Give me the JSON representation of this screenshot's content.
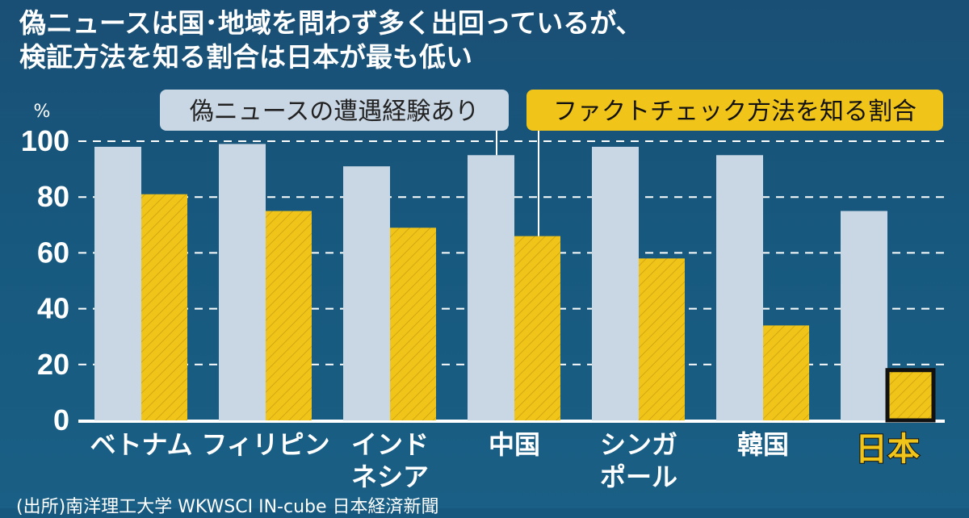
{
  "title_lines": [
    "偽ニュースは国･地域を問わず多く出回っているが、",
    "検証方法を知る割合は日本が最も低い"
  ],
  "source": "(出所)南洋理工大学 WKWSCI IN-cube 日本経済新聞",
  "colors": {
    "background": "#17587f",
    "series1": "#c9d6e3",
    "series2": "#f0c419",
    "highlight_label": "#f0c419",
    "text": "#ffffff"
  },
  "chart_data": {
    "type": "bar",
    "unit_label": "%",
    "categories": [
      [
        "ベトナム"
      ],
      [
        "フィリピン"
      ],
      [
        "インド",
        "ネシア"
      ],
      [
        "中国"
      ],
      [
        "シンガ",
        "ポール"
      ],
      [
        "韓国"
      ],
      [
        "日本"
      ]
    ],
    "highlight_category": "日本",
    "series": [
      {
        "name": "偽ニュースの遭遇経験あり",
        "values": [
          98,
          99,
          91,
          95,
          98,
          95,
          75
        ]
      },
      {
        "name": "ファクトチェック方法を知る割合",
        "values": [
          81,
          75,
          69,
          66,
          58,
          34,
          18
        ]
      }
    ],
    "ylim": [
      0,
      100
    ],
    "yticks": [
      0,
      20,
      40,
      60,
      80,
      100
    ],
    "grid": "dashed horizontal",
    "legend": "top, boxed labels with leader lines to 中国 bars"
  }
}
